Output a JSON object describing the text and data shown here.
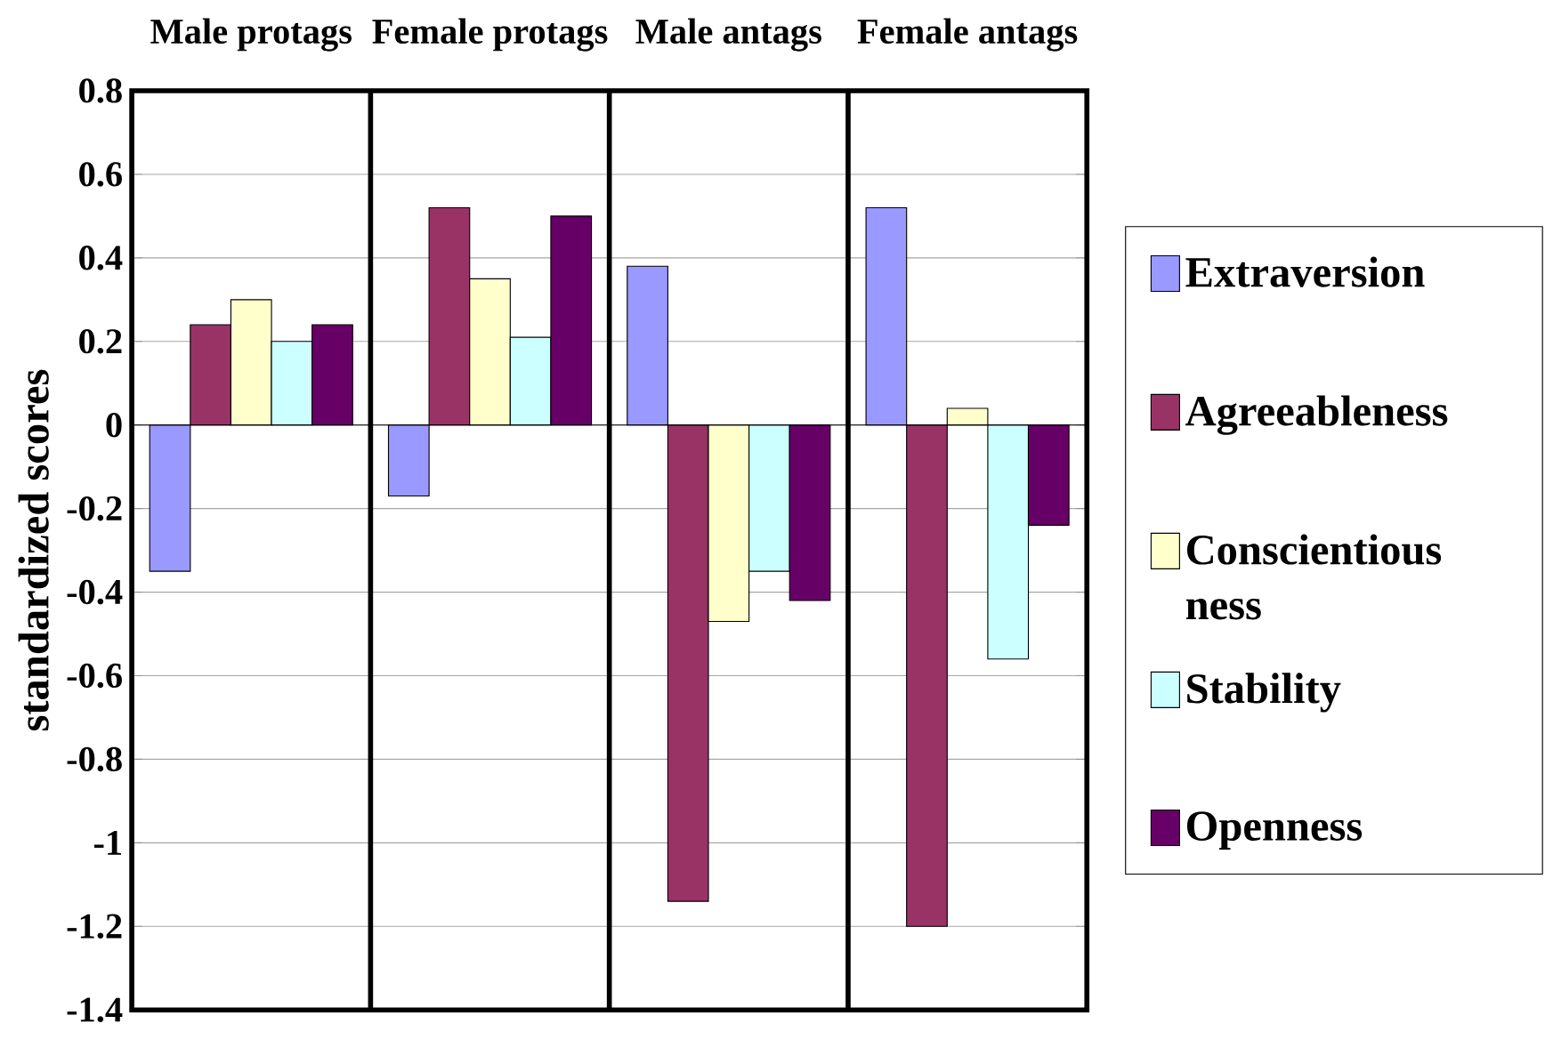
{
  "chart_data": {
    "type": "bar",
    "ylabel": "standardized scores",
    "categories": [
      "Male protags",
      "Female protags",
      "Male antags",
      "Female antags"
    ],
    "series": [
      {
        "name": "Extraversion",
        "color": "#9999ff",
        "values": [
          -0.35,
          -0.17,
          0.38,
          0.52
        ]
      },
      {
        "name": "Agreeableness",
        "color": "#993366",
        "values": [
          0.24,
          0.52,
          -1.14,
          -1.2
        ]
      },
      {
        "name": "Conscientious ness",
        "color": "#ffffcc",
        "values": [
          0.3,
          0.35,
          -0.47,
          0.04
        ]
      },
      {
        "name": "Stability",
        "color": "#ccffff",
        "values": [
          0.2,
          0.21,
          -0.35,
          -0.56
        ]
      },
      {
        "name": "Openness",
        "color": "#660066",
        "values": [
          0.24,
          0.5,
          -0.42,
          -0.24
        ]
      }
    ],
    "ylim": [
      -1.4,
      0.8
    ],
    "yticks": [
      -1.4,
      -1.2,
      -1,
      -0.8,
      -0.6,
      -0.4,
      -0.2,
      0,
      0.2,
      0.4,
      0.6,
      0.8
    ],
    "grid": "y",
    "legend": "right"
  }
}
